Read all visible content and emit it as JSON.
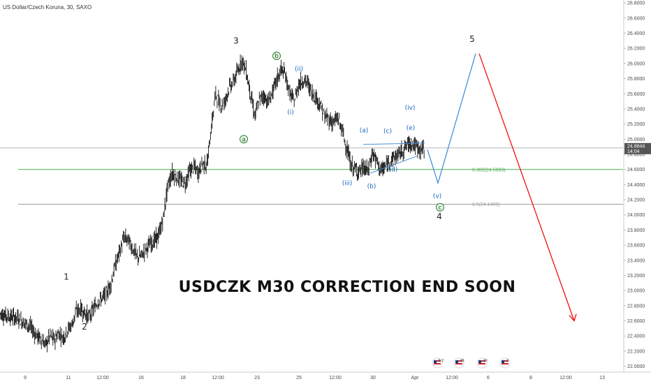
{
  "header": {
    "symbol_label": "US Dollar/Czech Koruna, 30, SAXO"
  },
  "headline": "USDCZK M30 CORRECTION END SOON",
  "price_tag": {
    "value": "24.8844",
    "countdown": "14:04",
    "color": "#555555"
  },
  "flags": [
    {
      "icon": "us-flag-icon",
      "label": "5 2"
    },
    {
      "icon": "us-flag-icon",
      "label": "29"
    },
    {
      "icon": "us-flag-icon",
      "label": "10"
    },
    {
      "icon": "us-flag-icon",
      "label": "3"
    }
  ],
  "colors": {
    "candle": "#111111",
    "fib_382": "#4caf50",
    "fib_50": "#9e9e9e",
    "last_price": "#9e9e9e",
    "projection_up": "#4a90d9",
    "projection_down": "#ee1111",
    "minor_label": "#1565c0",
    "circle_label": "#2e7d32"
  },
  "chart_data": {
    "type": "line",
    "y_axis": {
      "ticks": [
        "26.8000",
        "26.6000",
        "26.4000",
        "26.2000",
        "26.0000",
        "25.8000",
        "25.6000",
        "25.4000",
        "25.2000",
        "25.0000",
        "24.8000",
        "24.6000",
        "24.4000",
        "24.2000",
        "24.0000",
        "23.8000",
        "23.6000",
        "23.4000",
        "23.2000",
        "23.0000",
        "22.8000",
        "22.6000",
        "22.4000",
        "22.2000",
        "22.0000"
      ],
      "ylim": [
        21.95,
        26.82
      ]
    },
    "x_axis": {
      "ticks": [
        "9",
        "11",
        "12:00",
        "16",
        "18",
        "12:00",
        "23",
        "25",
        "12:00",
        "30",
        "Apr",
        "12:00",
        "6",
        "8",
        "12:00",
        "13"
      ]
    },
    "price_series": [
      {
        "t": 0,
        "v": 22.7
      },
      {
        "t": 4,
        "v": 22.66
      },
      {
        "t": 8,
        "v": 22.64
      },
      {
        "t": 11,
        "v": 22.58
      },
      {
        "t": 14,
        "v": 22.52
      },
      {
        "t": 17,
        "v": 22.4
      },
      {
        "t": 19,
        "v": 22.36
      },
      {
        "t": 21,
        "v": 22.28
      },
      {
        "t": 23,
        "v": 22.4
      },
      {
        "t": 25,
        "v": 22.35
      },
      {
        "t": 27,
        "v": 22.44
      },
      {
        "t": 29,
        "v": 22.38
      },
      {
        "t": 31,
        "v": 22.48
      },
      {
        "t": 33,
        "v": 22.55
      },
      {
        "t": 35,
        "v": 22.72
      },
      {
        "t": 37,
        "v": 22.76
      },
      {
        "t": 39,
        "v": 22.7
      },
      {
        "t": 41,
        "v": 22.65
      },
      {
        "t": 43,
        "v": 22.76
      },
      {
        "t": 45,
        "v": 22.86
      },
      {
        "t": 47,
        "v": 22.9
      },
      {
        "t": 49,
        "v": 22.97
      },
      {
        "t": 51,
        "v": 23.1
      },
      {
        "t": 53,
        "v": 23.34
      },
      {
        "t": 55,
        "v": 23.52
      },
      {
        "t": 57,
        "v": 23.7
      },
      {
        "t": 59,
        "v": 23.66
      },
      {
        "t": 61,
        "v": 23.55
      },
      {
        "t": 63,
        "v": 23.44
      },
      {
        "t": 65,
        "v": 23.46
      },
      {
        "t": 67,
        "v": 23.55
      },
      {
        "t": 69,
        "v": 23.62
      },
      {
        "t": 71,
        "v": 23.66
      },
      {
        "t": 73,
        "v": 23.74
      },
      {
        "t": 75,
        "v": 23.96
      },
      {
        "t": 77,
        "v": 24.38
      },
      {
        "t": 79,
        "v": 24.55
      },
      {
        "t": 81,
        "v": 24.5
      },
      {
        "t": 83,
        "v": 24.45
      },
      {
        "t": 85,
        "v": 24.42
      },
      {
        "t": 87,
        "v": 24.58
      },
      {
        "t": 89,
        "v": 24.63
      },
      {
        "t": 91,
        "v": 24.56
      },
      {
        "t": 93,
        "v": 24.68
      },
      {
        "t": 95,
        "v": 24.66
      },
      {
        "t": 97,
        "v": 25.15
      },
      {
        "t": 99,
        "v": 25.6
      },
      {
        "t": 101,
        "v": 25.45
      },
      {
        "t": 103,
        "v": 25.48
      },
      {
        "t": 105,
        "v": 25.67
      },
      {
        "t": 107,
        "v": 25.75
      },
      {
        "t": 109,
        "v": 25.88
      },
      {
        "t": 111,
        "v": 26.05
      },
      {
        "t": 113,
        "v": 25.9
      },
      {
        "t": 115,
        "v": 25.6
      },
      {
        "t": 117,
        "v": 25.3
      },
      {
        "t": 119,
        "v": 25.52
      },
      {
        "t": 121,
        "v": 25.58
      },
      {
        "t": 123,
        "v": 25.49
      },
      {
        "t": 125,
        "v": 25.61
      },
      {
        "t": 127,
        "v": 25.78
      },
      {
        "t": 129,
        "v": 25.92
      },
      {
        "t": 131,
        "v": 25.85
      },
      {
        "t": 133,
        "v": 25.6
      },
      {
        "t": 135,
        "v": 25.5
      },
      {
        "t": 137,
        "v": 25.72
      },
      {
        "t": 139,
        "v": 25.78
      },
      {
        "t": 141,
        "v": 25.75
      },
      {
        "t": 143,
        "v": 25.62
      },
      {
        "t": 145,
        "v": 25.55
      },
      {
        "t": 147,
        "v": 25.45
      },
      {
        "t": 149,
        "v": 25.3
      },
      {
        "t": 151,
        "v": 25.26
      },
      {
        "t": 153,
        "v": 25.22
      },
      {
        "t": 155,
        "v": 25.28
      },
      {
        "t": 157,
        "v": 25.12
      },
      {
        "t": 159,
        "v": 24.9
      },
      {
        "t": 161,
        "v": 24.66
      },
      {
        "t": 163,
        "v": 24.6
      },
      {
        "t": 165,
        "v": 24.58
      },
      {
        "t": 167,
        "v": 24.62
      },
      {
        "t": 169,
        "v": 24.58
      },
      {
        "t": 171,
        "v": 24.82
      },
      {
        "t": 173,
        "v": 24.7
      },
      {
        "t": 175,
        "v": 24.58
      },
      {
        "t": 177,
        "v": 24.64
      },
      {
        "t": 179,
        "v": 24.72
      },
      {
        "t": 181,
        "v": 24.76
      },
      {
        "t": 183,
        "v": 24.8
      },
      {
        "t": 185,
        "v": 24.86
      },
      {
        "t": 187,
        "v": 24.93
      },
      {
        "t": 189,
        "v": 24.95
      },
      {
        "t": 191,
        "v": 24.9
      },
      {
        "t": 193,
        "v": 24.86
      },
      {
        "t": 195,
        "v": 24.88
      }
    ],
    "fib_levels": [
      {
        "label": "0.382(24.5993)",
        "value": 24.5993
      },
      {
        "label": "0.5(24.1409)",
        "value": 24.1409
      }
    ],
    "last_price": 24.8844,
    "wave_labels": [
      {
        "label": "1",
        "value": 23.18
      },
      {
        "label": "2",
        "value": 22.52
      },
      {
        "label": "3",
        "value": 26.3
      },
      {
        "label": "4",
        "value": 23.98
      },
      {
        "label": "5",
        "value": 26.32
      }
    ],
    "minor_labels": [
      {
        "label": "(i)",
        "value": 25.36
      },
      {
        "label": "(ii)",
        "value": 25.93
      },
      {
        "label": "(iii)",
        "value": 24.42
      },
      {
        "label": "(iv)",
        "value": 25.42
      },
      {
        "label": "(v)",
        "value": 24.25
      },
      {
        "label": "(a)",
        "value": 25.12
      },
      {
        "label": "(b)",
        "value": 24.38
      },
      {
        "label": "(c)",
        "value": 25.11
      },
      {
        "label": "(d)",
        "value": 24.6
      },
      {
        "label": "(e)",
        "value": 25.15
      }
    ],
    "circle_labels": [
      {
        "label": "a",
        "value": 25.0
      },
      {
        "label": "b",
        "value": 26.1
      },
      {
        "label": "c",
        "value": 24.1
      }
    ],
    "projection": {
      "up": [
        {
          "v": 24.86
        },
        {
          "v": 24.42
        },
        {
          "v": 26.13
        }
      ],
      "down": [
        {
          "v": 26.13
        },
        {
          "v": 22.6
        }
      ]
    }
  }
}
